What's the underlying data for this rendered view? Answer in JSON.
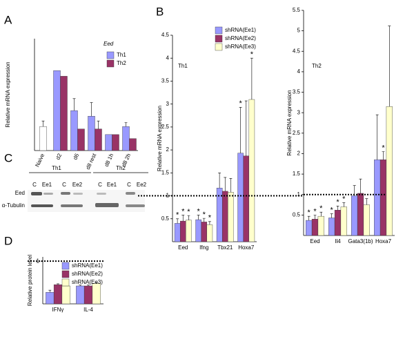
{
  "panels": [
    "A",
    "B",
    "C",
    "D"
  ],
  "blot": {
    "groups": [
      "Th1",
      "Th2"
    ],
    "lanes": [
      "C",
      "Ee1",
      "C",
      "Ee2",
      "C",
      "Ee1",
      "C",
      "Ee2"
    ],
    "rows": [
      "Eed",
      "α-Tubulin"
    ]
  },
  "chart_data": [
    {
      "type": "bar",
      "title": "Eed",
      "y_label": "Relative mRNA expression",
      "categories": [
        "Naive",
        "d2",
        "d6",
        "d8 rest",
        "d8 1h",
        "d8 2h"
      ],
      "ylim": [
        0,
        1.4
      ],
      "series": [
        {
          "color": "#ffffff",
          "values": [
            0.3,
            null,
            null,
            null,
            null,
            null
          ],
          "errors": [
            0.07,
            null,
            null,
            null,
            null,
            null
          ]
        },
        {
          "name": "Th1",
          "color": "#9999ff",
          "values": [
            null,
            1.0,
            0.5,
            0.43,
            0.2,
            0.3
          ],
          "errors": [
            null,
            null,
            0.15,
            0.17,
            null,
            0.05
          ]
        },
        {
          "name": "Th2",
          "color": "#993366",
          "values": [
            null,
            0.93,
            0.27,
            0.27,
            0.2,
            0.15
          ],
          "errors": [
            null,
            null,
            null,
            0.1,
            null,
            null
          ]
        }
      ]
    },
    {
      "type": "bar",
      "label": "Th1",
      "y_label": "Relative mRNA expression",
      "categories": [
        "Eed",
        "Ifng",
        "Tbx21",
        "Hoxa7"
      ],
      "ylim": [
        0,
        4.5
      ],
      "yticks": [
        0.5,
        1,
        1.5,
        2,
        2.5,
        3,
        3.5,
        4,
        4.5
      ],
      "refline": 1,
      "marker_text": "*",
      "significant": [
        [
          0,
          0
        ],
        [
          0,
          1
        ],
        [
          0,
          2
        ],
        [
          1,
          0
        ],
        [
          1,
          1
        ],
        [
          1,
          2
        ],
        [
          3,
          0
        ],
        [
          3,
          2
        ]
      ],
      "series": [
        {
          "name": "shRNA(Ee1)",
          "color": "#9999ff",
          "values": [
            0.4,
            0.48,
            1.17,
            1.93
          ],
          "errors": [
            0.1,
            0.1,
            0.33,
            1.0
          ]
        },
        {
          "name": "shRNA(Ee2)",
          "color": "#993366",
          "values": [
            0.45,
            0.43,
            1.1,
            1.87
          ],
          "errors": [
            0.13,
            0.08,
            0.3,
            1.2
          ]
        },
        {
          "name": "shRNA(Ee3)",
          "color": "#ffffcc",
          "values": [
            0.47,
            0.37,
            1.08,
            3.1
          ],
          "errors": [
            0.1,
            0.07,
            0.3,
            0.9
          ]
        }
      ]
    },
    {
      "type": "bar",
      "label": "Th2",
      "y_label": "Relative mRNA expression",
      "categories": [
        "Eed",
        "Il4",
        "Gata3(1b)",
        "Hoxa7"
      ],
      "ylim": [
        0,
        5.5
      ],
      "yticks": [
        0.5,
        1,
        1.5,
        2,
        2.5,
        3,
        3.5,
        4,
        4.5,
        5,
        5.5
      ],
      "refline": 1,
      "marker_text": "*",
      "significant": [
        [
          0,
          0
        ],
        [
          0,
          1
        ],
        [
          0,
          2
        ],
        [
          1,
          0
        ],
        [
          1,
          1
        ],
        [
          1,
          2
        ],
        [
          3,
          1
        ]
      ],
      "series": [
        {
          "name": "shRNA(Ee1)",
          "color": "#9999ff",
          "values": [
            0.37,
            0.43,
            0.97,
            1.85
          ],
          "errors": [
            0.1,
            0.1,
            0.25,
            1.1
          ]
        },
        {
          "name": "shRNA(Ee2)",
          "color": "#993366",
          "values": [
            0.4,
            0.62,
            1.03,
            1.85
          ],
          "errors": [
            0.1,
            0.1,
            0.35,
            0.2
          ]
        },
        {
          "name": "shRNA(Ee3)",
          "color": "#ffffcc",
          "values": [
            0.47,
            0.7,
            0.75,
            3.15
          ],
          "errors": [
            0.1,
            0.1,
            0.15,
            1.97
          ]
        }
      ]
    },
    {
      "type": "bar",
      "y_label": "Relative protein level",
      "categories": [
        "IFNγ",
        "IL-4"
      ],
      "ylim": [
        0,
        1.1
      ],
      "yticks": [
        1
      ],
      "refline": 1,
      "series": [
        {
          "name": "shRNA(Ee1)",
          "color": "#9999ff",
          "values": [
            0.27,
            0.42
          ],
          "errors": [
            0.05,
            0.02
          ]
        },
        {
          "name": "shRNA(Ee2)",
          "color": "#993366",
          "values": [
            0.45,
            0.42
          ],
          "errors": [
            0.02,
            0.02
          ]
        },
        {
          "name": "shRNA(Ee3)",
          "color": "#ffffcc",
          "values": [
            0.42,
            0.48
          ],
          "errors": [
            0.02,
            0.02
          ]
        }
      ]
    }
  ]
}
